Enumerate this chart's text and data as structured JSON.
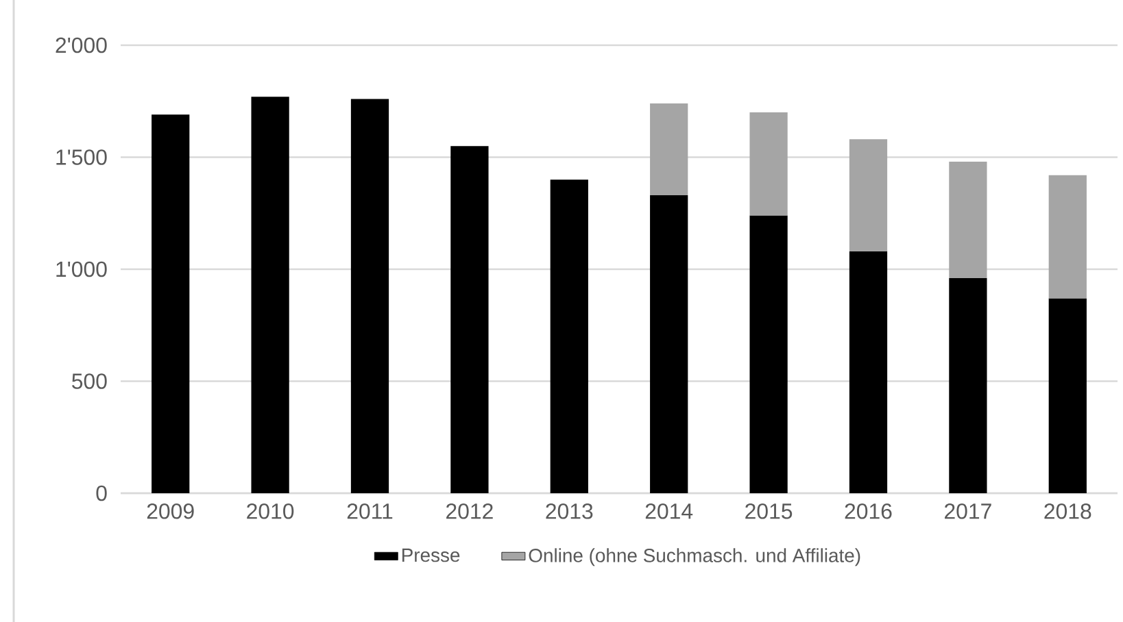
{
  "chart_data": {
    "type": "bar",
    "stacked": true,
    "categories": [
      "2009",
      "2010",
      "2011",
      "2012",
      "2013",
      "2014",
      "2015",
      "2016",
      "2017",
      "2018"
    ],
    "series": [
      {
        "name": "Presse",
        "color": "#000000",
        "values": [
          1690,
          1770,
          1760,
          1550,
          1400,
          1330,
          1240,
          1080,
          960,
          870
        ]
      },
      {
        "name": "Online (ohne Suchmasch. und Affiliate)",
        "color": "#a5a5a5",
        "values": [
          null,
          null,
          null,
          null,
          null,
          410,
          460,
          500,
          520,
          550
        ]
      }
    ],
    "ylim": [
      0,
      2000
    ],
    "yticks": [
      0,
      500,
      {
        "value": 1000,
        "label": "1'000"
      },
      {
        "value": 1500,
        "label": "1'500"
      },
      {
        "value": 2000,
        "label": "2'000"
      }
    ],
    "grid": "y",
    "legend": "bottom"
  }
}
